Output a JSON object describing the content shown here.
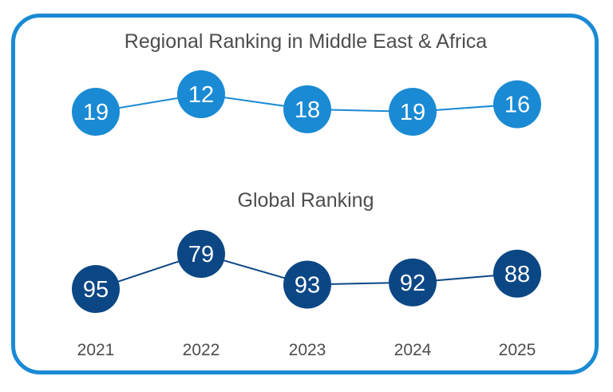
{
  "colors": {
    "border": "#1a8ad4",
    "regional": "#1a8ad4",
    "global": "#0c4785",
    "text": "#4d4d4d",
    "value_text": "#ffffff"
  },
  "chart_data": [
    {
      "type": "line",
      "title": "Regional Ranking in Middle East & Africa",
      "categories": [
        "2021",
        "2022",
        "2023",
        "2024",
        "2025"
      ],
      "values": [
        19,
        12,
        18,
        19,
        16
      ],
      "axis": "inverted",
      "ylim": [
        10,
        20
      ],
      "grid": false
    },
    {
      "type": "line",
      "title": "Global Ranking",
      "categories": [
        "2021",
        "2022",
        "2023",
        "2024",
        "2025"
      ],
      "values": [
        95,
        79,
        93,
        92,
        88
      ],
      "axis": "inverted",
      "ylim": [
        75,
        100
      ],
      "grid": false
    }
  ]
}
